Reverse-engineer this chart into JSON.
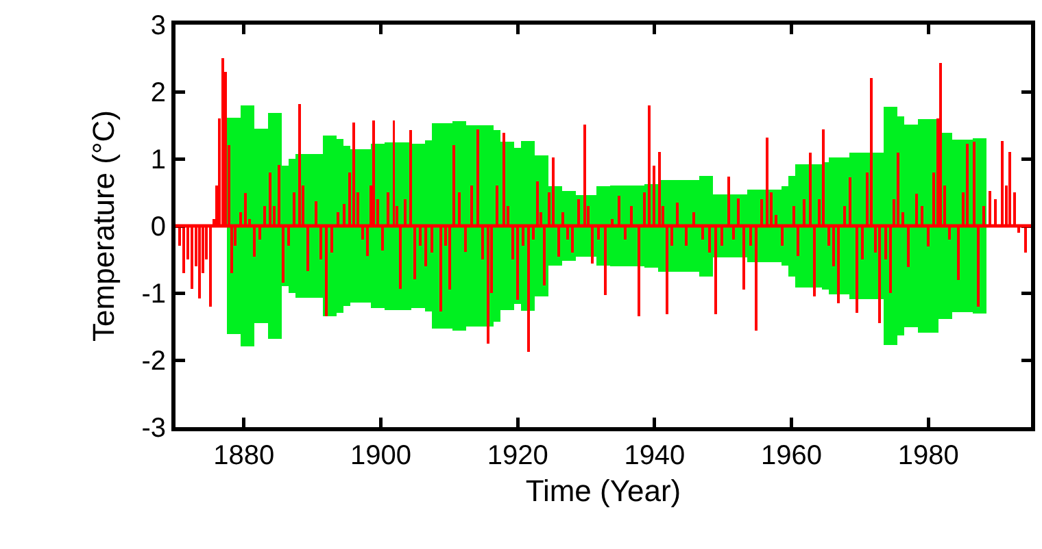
{
  "chart_data": {
    "type": "bar",
    "xlabel": "Time (Year)",
    "ylabel": "Temperature (°C)",
    "xlim": [
      1870,
      1995
    ],
    "xticks": [
      1880,
      1900,
      1920,
      1940,
      1960,
      1980
    ],
    "ylim": [
      -3,
      3
    ],
    "yticks": [
      -3,
      -2,
      -1,
      0,
      1,
      2,
      3
    ],
    "grid": false,
    "ref_lines": [
      {
        "axis": "y",
        "value": 0,
        "color": "#ff0000"
      }
    ],
    "series": [
      {
        "color": "#00f020",
        "x": [
          1878,
          1879,
          1880,
          1881,
          1882,
          1883,
          1884,
          1885,
          1886,
          1887,
          1888,
          1889,
          1890,
          1891,
          1892,
          1893,
          1894,
          1895,
          1896,
          1897,
          1898,
          1899,
          1900,
          1901,
          1902,
          1903,
          1904,
          1905,
          1906,
          1907,
          1908,
          1909,
          1910,
          1911,
          1912,
          1913,
          1914,
          1915,
          1916,
          1917,
          1918,
          1919,
          1920,
          1921,
          1922,
          1923,
          1924,
          1925,
          1926,
          1927,
          1928,
          1929,
          1930,
          1931,
          1932,
          1933,
          1934,
          1935,
          1936,
          1937,
          1938,
          1939,
          1940,
          1941,
          1942,
          1943,
          1944,
          1945,
          1946,
          1947,
          1948,
          1949,
          1950,
          1951,
          1952,
          1953,
          1954,
          1955,
          1956,
          1957,
          1958,
          1959,
          1960,
          1961,
          1962,
          1963,
          1964,
          1965,
          1966,
          1967,
          1968,
          1969,
          1970,
          1971,
          1972,
          1973,
          1974,
          1975,
          1976,
          1977,
          1978,
          1979,
          1980,
          1981,
          1982,
          1983,
          1984,
          1985,
          1986,
          1987,
          1988
        ],
        "values": [
          3.22,
          3.22,
          3.6,
          3.6,
          2.9,
          2.9,
          3.36,
          3.36,
          1.8,
          2.0,
          2.14,
          2.14,
          2.14,
          2.14,
          2.7,
          2.7,
          2.6,
          2.38,
          2.28,
          2.28,
          2.28,
          2.44,
          2.44,
          2.5,
          2.5,
          2.5,
          2.5,
          2.44,
          2.44,
          2.56,
          3.06,
          3.06,
          3.06,
          3.12,
          3.12,
          3.0,
          3.0,
          3.0,
          3.0,
          2.86,
          2.52,
          2.52,
          2.32,
          2.54,
          2.54,
          2.1,
          2.1,
          1.18,
          1.18,
          1.04,
          1.04,
          0.92,
          0.92,
          0.92,
          1.18,
          1.18,
          1.2,
          1.2,
          1.2,
          1.2,
          1.2,
          1.24,
          1.24,
          1.36,
          1.36,
          1.36,
          1.36,
          1.36,
          1.36,
          1.5,
          1.5,
          0.94,
          0.94,
          0.94,
          0.94,
          0.94,
          1.08,
          1.08,
          1.08,
          1.08,
          1.08,
          1.18,
          1.5,
          1.84,
          1.84,
          1.84,
          1.84,
          1.9,
          2.04,
          2.04,
          2.04,
          2.18,
          2.18,
          2.18,
          2.18,
          2.18,
          3.56,
          3.56,
          3.26,
          3.02,
          3.02,
          3.18,
          3.18,
          3.18,
          2.78,
          2.78,
          2.58,
          2.58,
          2.58,
          2.62,
          2.62
        ],
        "base": [
          -1.61,
          -1.61,
          -1.8,
          -1.8,
          -1.45,
          -1.45,
          -1.68,
          -1.68,
          -0.9,
          -1.0,
          -1.07,
          -1.07,
          -1.07,
          -1.07,
          -1.35,
          -1.35,
          -1.3,
          -1.19,
          -1.14,
          -1.14,
          -1.14,
          -1.22,
          -1.22,
          -1.25,
          -1.25,
          -1.25,
          -1.25,
          -1.22,
          -1.22,
          -1.28,
          -1.53,
          -1.53,
          -1.53,
          -1.56,
          -1.56,
          -1.5,
          -1.5,
          -1.5,
          -1.5,
          -1.43,
          -1.26,
          -1.26,
          -1.16,
          -1.27,
          -1.27,
          -1.05,
          -1.05,
          -0.59,
          -0.59,
          -0.52,
          -0.52,
          -0.46,
          -0.46,
          -0.46,
          -0.59,
          -0.59,
          -0.6,
          -0.6,
          -0.6,
          -0.6,
          -0.6,
          -0.62,
          -0.62,
          -0.68,
          -0.68,
          -0.68,
          -0.68,
          -0.68,
          -0.68,
          -0.75,
          -0.75,
          -0.47,
          -0.47,
          -0.47,
          -0.47,
          -0.47,
          -0.54,
          -0.54,
          -0.54,
          -0.54,
          -0.54,
          -0.59,
          -0.75,
          -0.92,
          -0.92,
          -0.92,
          -0.92,
          -0.95,
          -1.02,
          -1.02,
          -1.02,
          -1.09,
          -1.09,
          -1.09,
          -1.09,
          -1.09,
          -1.78,
          -1.78,
          -1.63,
          -1.51,
          -1.51,
          -1.59,
          -1.59,
          -1.59,
          -1.39,
          -1.39,
          -1.29,
          -1.29,
          -1.29,
          -1.31,
          -1.31
        ]
      },
      {
        "color": "#ff0000",
        "x": [
          1870.6,
          1871.2,
          1871.8,
          1872.4,
          1873,
          1873.5,
          1874,
          1874.5,
          1875.1,
          1875.6,
          1876,
          1876.45,
          1876.9,
          1877.35,
          1877.8,
          1878.2,
          1878.7,
          1879.5,
          1880.2,
          1880.8,
          1881.5,
          1882.3,
          1883,
          1883.8,
          1884.4,
          1885.1,
          1885.7,
          1886.5,
          1887.3,
          1888.1,
          1888.6,
          1889.3,
          1890.5,
          1891.2,
          1892,
          1892.8,
          1893.7,
          1894.6,
          1895.4,
          1896,
          1896.6,
          1897.3,
          1898,
          1898.5,
          1898.9,
          1899.5,
          1900.2,
          1901,
          1901.9,
          1902.4,
          1902.9,
          1903.6,
          1904.4,
          1905,
          1905.8,
          1906.6,
          1907.5,
          1908.8,
          1909.5,
          1910.1,
          1910.7,
          1911.5,
          1912.4,
          1913.3,
          1914.2,
          1914.9,
          1915.7,
          1916.2,
          1917,
          1918,
          1918.6,
          1919.3,
          1920,
          1920.8,
          1921.6,
          1922.3,
          1922.9,
          1923.4,
          1923.9,
          1924.6,
          1925.2,
          1926,
          1926.6,
          1927.3,
          1928,
          1928.9,
          1929.8,
          1930.3,
          1930.9,
          1931.8,
          1932.8,
          1933.8,
          1934.8,
          1935.7,
          1936.6,
          1937.7,
          1938.5,
          1939.2,
          1939.9,
          1940.7,
          1941.2,
          1941.8,
          1942.5,
          1943.3,
          1944.6,
          1945.7,
          1947,
          1948,
          1948.9,
          1949.8,
          1950.8,
          1951.5,
          1952.2,
          1953,
          1954,
          1954.8,
          1955.6,
          1956.4,
          1957,
          1957.7,
          1958.6,
          1959.5,
          1960.3,
          1960.9,
          1961.8,
          1962.7,
          1963.3,
          1964,
          1964.7,
          1965.5,
          1966.2,
          1966.9,
          1967.8,
          1968.6,
          1969.6,
          1970.4,
          1971.1,
          1971.7,
          1972.3,
          1972.9,
          1973.8,
          1974.5,
          1975,
          1975.6,
          1976.3,
          1977.1,
          1978.3,
          1979.1,
          1980,
          1980.8,
          1981.4,
          1981.8,
          1982.4,
          1983.1,
          1984.4,
          1985.1,
          1985.7,
          1986.7,
          1987.3,
          1988.1,
          1989,
          1989.8,
          1990.8,
          1991.4,
          1991.9,
          1992.6,
          1993.2,
          1994.2
        ],
        "values": [
          -0.3,
          -0.7,
          -0.5,
          -0.94,
          -0.6,
          -1.08,
          -0.7,
          -0.5,
          -1.2,
          0.1,
          0.6,
          1.6,
          2.5,
          2.3,
          1.2,
          -0.7,
          -0.3,
          0.2,
          0.49,
          0.1,
          -0.46,
          -0.2,
          0.3,
          0.8,
          0.3,
          0.91,
          -0.85,
          -0.3,
          0.5,
          1.82,
          0.6,
          -0.67,
          0.37,
          -0.5,
          -1.35,
          -0.4,
          0.2,
          0.33,
          0.8,
          1.54,
          0.5,
          -0.2,
          -0.45,
          0.6,
          1.57,
          0.4,
          -0.37,
          0.5,
          1.57,
          0.3,
          -0.94,
          0.4,
          1.43,
          -0.8,
          -0.3,
          -0.6,
          -0.4,
          -1.28,
          -0.3,
          -0.95,
          1.2,
          0.5,
          -0.39,
          0.6,
          1.44,
          -0.5,
          -1.76,
          -1.0,
          0.6,
          1.39,
          0.3,
          -0.5,
          -1.1,
          -0.3,
          -1.88,
          -0.2,
          0.66,
          0.2,
          -0.89,
          0.5,
          1.02,
          -0.46,
          0.2,
          -0.2,
          -0.4,
          0.4,
          1.51,
          0.3,
          -0.56,
          -0.2,
          -1.03,
          0.1,
          0.45,
          -0.2,
          0.3,
          -1.35,
          0.5,
          1.8,
          0.9,
          1.1,
          0.3,
          -1.32,
          -0.3,
          0.35,
          -0.3,
          0.2,
          -0.2,
          -0.4,
          -1.32,
          -0.3,
          0.73,
          -0.2,
          0.41,
          -0.95,
          -0.3,
          -1.56,
          0.4,
          1.32,
          0.5,
          0.16,
          -0.3,
          0,
          0.3,
          -0.45,
          0.4,
          1.09,
          -1.05,
          0.4,
          1.44,
          -0.3,
          -0.6,
          -1.15,
          0.3,
          0.72,
          -1.3,
          -0.5,
          0.8,
          2.2,
          -0.4,
          -1.45,
          -0.5,
          -1.0,
          0.4,
          1.09,
          0.2,
          -0.61,
          0.48,
          0.3,
          -0.31,
          0.8,
          1.6,
          2.43,
          0.6,
          -0.2,
          -0.81,
          0.5,
          1.22,
          1.26,
          -1.2,
          0.3,
          0.52,
          0.4,
          1.27,
          0.6,
          1.1,
          0.5,
          -0.1,
          -0.4
        ]
      }
    ]
  }
}
